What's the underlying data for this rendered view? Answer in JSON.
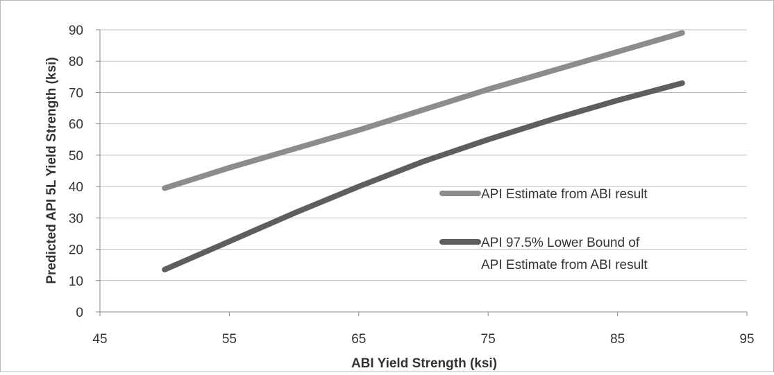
{
  "chart_data": {
    "type": "line",
    "xlabel": "ABI Yield Strength (ksi)",
    "ylabel": "Predicted API 5L Yield Strength (ksi)",
    "xlim": [
      45,
      95
    ],
    "ylim": [
      0,
      90
    ],
    "xticks": [
      45,
      55,
      65,
      75,
      85,
      95
    ],
    "yticks": [
      0,
      10,
      20,
      30,
      40,
      50,
      60,
      70,
      80,
      90
    ],
    "grid": "horizontal",
    "legend_position": "center-right inside plot",
    "series": [
      {
        "name_lines": [
          "API Estimate from ABI result"
        ],
        "color": "#8c8c8c",
        "x": [
          50,
          55,
          60,
          65,
          70,
          75,
          80,
          85,
          90
        ],
        "y": [
          39.5,
          46,
          52,
          58,
          64.5,
          71,
          77,
          83,
          89
        ]
      },
      {
        "name_lines": [
          "API 97.5% Lower Bound of",
          "API Estimate from ABI result"
        ],
        "color": "#5e5e5e",
        "x": [
          50,
          55,
          60,
          65,
          70,
          75,
          80,
          85,
          90
        ],
        "y": [
          13.5,
          22.5,
          31.5,
          40,
          48,
          55,
          61.5,
          67.5,
          73
        ]
      }
    ]
  }
}
